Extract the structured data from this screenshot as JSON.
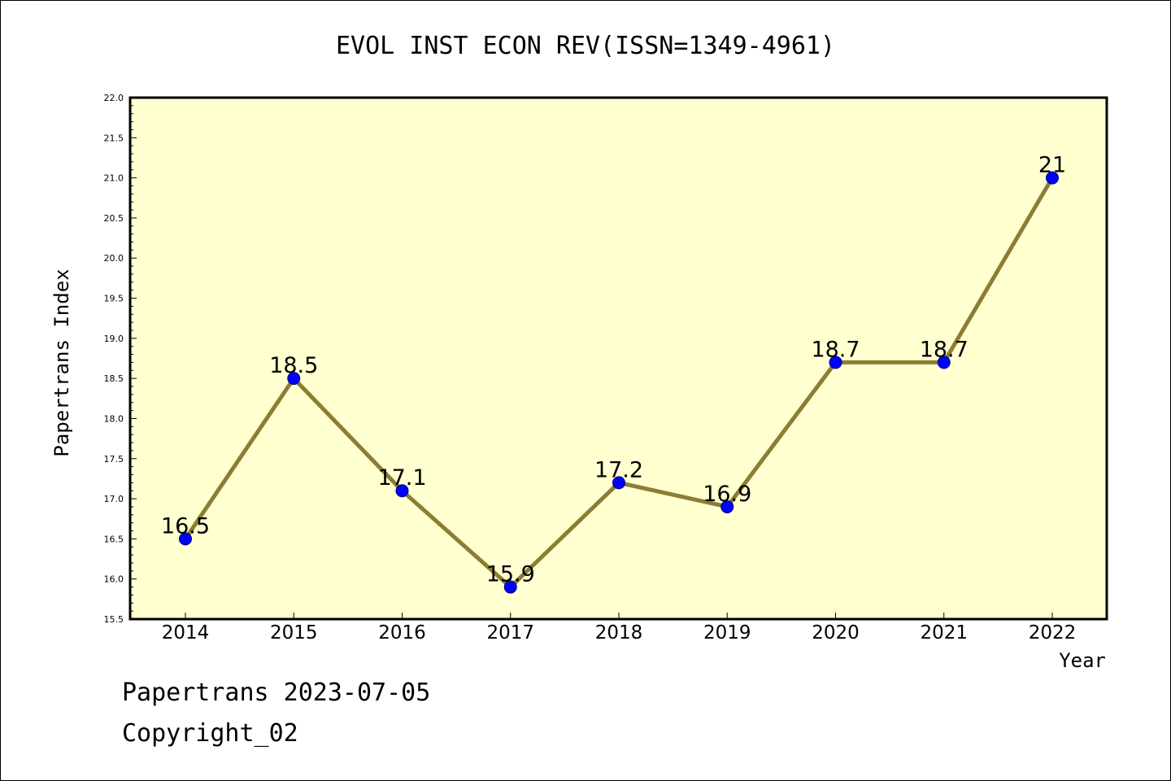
{
  "chart_data": {
    "type": "line",
    "title": "EVOL INST ECON REV(ISSN=1349-4961)",
    "xlabel": "Year",
    "ylabel": "Papertrans Index",
    "x": [
      "2014",
      "2015",
      "2016",
      "2017",
      "2018",
      "2019",
      "2020",
      "2021",
      "2022"
    ],
    "values": [
      16.5,
      18.5,
      17.1,
      15.9,
      17.2,
      16.9,
      18.7,
      18.7,
      21
    ],
    "data_labels": [
      "16.5",
      "18.5",
      "17.1",
      "15.9",
      "17.2",
      "16.9",
      "18.7",
      "18.7",
      "21"
    ],
    "ylim": [
      15.5,
      22.0
    ],
    "yticks": [
      "15.5",
      "16.0",
      "16.5",
      "17.0",
      "17.5",
      "18.0",
      "18.5",
      "19.0",
      "19.5",
      "20.0",
      "20.5",
      "21.0",
      "21.5",
      "22.0"
    ],
    "grid": false,
    "legend": "none",
    "colors": {
      "plot_background": "#ffffd0",
      "line": "#8b7d33",
      "marker_fill": "#0000ff",
      "marker_edge": "#000080"
    }
  },
  "footer": {
    "line1": "Papertrans 2023-07-05",
    "line2": "Copyright_02"
  }
}
